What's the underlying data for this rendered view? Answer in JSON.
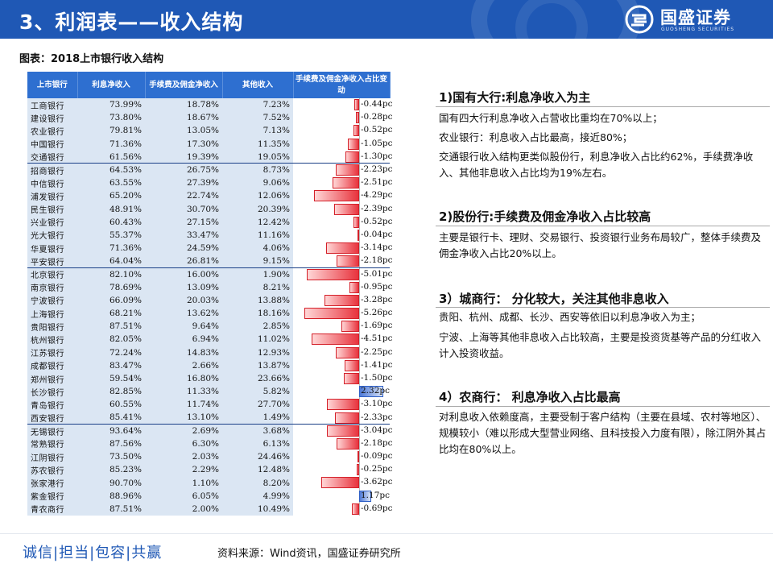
{
  "header": {
    "title": "3、利润表——收入结构"
  },
  "logo": {
    "name_cn": "国盛证券",
    "name_en": "GUOSHENG SECURITIES"
  },
  "chart_caption": "图表：2018上市银行收入结构",
  "table": {
    "columns": [
      "上市银行",
      "利息净收入",
      "手续费及佣金净收入",
      "其他收入",
      "手续费及佣金净收入占比变动"
    ],
    "groups": [
      {
        "name": "国有大行",
        "rows": [
          {
            "bank": "工商银行",
            "interest": "73.99%",
            "fee": "18.78%",
            "other": "7.23%",
            "change": -0.44,
            "change_label": "-0.44pc"
          },
          {
            "bank": "建设银行",
            "interest": "73.80%",
            "fee": "18.67%",
            "other": "7.52%",
            "change": -0.28,
            "change_label": "-0.28pc"
          },
          {
            "bank": "农业银行",
            "interest": "79.81%",
            "fee": "13.05%",
            "other": "7.13%",
            "change": -0.52,
            "change_label": "-0.52pc"
          },
          {
            "bank": "中国银行",
            "interest": "71.36%",
            "fee": "17.30%",
            "other": "11.35%",
            "change": -1.05,
            "change_label": "-1.05pc"
          },
          {
            "bank": "交通银行",
            "interest": "61.56%",
            "fee": "19.39%",
            "other": "19.05%",
            "change": -1.3,
            "change_label": "-1.30pc"
          }
        ]
      },
      {
        "name": "股份行",
        "rows": [
          {
            "bank": "招商银行",
            "interest": "64.53%",
            "fee": "26.75%",
            "other": "8.73%",
            "change": -2.23,
            "change_label": "-2.23pc"
          },
          {
            "bank": "中信银行",
            "interest": "63.55%",
            "fee": "27.39%",
            "other": "9.06%",
            "change": -2.51,
            "change_label": "-2.51pc"
          },
          {
            "bank": "浦发银行",
            "interest": "65.20%",
            "fee": "22.74%",
            "other": "12.06%",
            "change": -4.29,
            "change_label": "-4.29pc"
          },
          {
            "bank": "民生银行",
            "interest": "48.91%",
            "fee": "30.70%",
            "other": "20.39%",
            "change": -2.39,
            "change_label": "-2.39pc"
          },
          {
            "bank": "兴业银行",
            "interest": "60.43%",
            "fee": "27.15%",
            "other": "12.42%",
            "change": -0.52,
            "change_label": "-0.52pc"
          },
          {
            "bank": "光大银行",
            "interest": "55.37%",
            "fee": "33.47%",
            "other": "11.16%",
            "change": -0.04,
            "change_label": "-0.04pc"
          },
          {
            "bank": "华夏银行",
            "interest": "71.36%",
            "fee": "24.59%",
            "other": "4.06%",
            "change": -3.14,
            "change_label": "-3.14pc"
          },
          {
            "bank": "平安银行",
            "interest": "64.04%",
            "fee": "26.81%",
            "other": "9.15%",
            "change": -2.18,
            "change_label": "-2.18pc"
          }
        ]
      },
      {
        "name": "城商行",
        "rows": [
          {
            "bank": "北京银行",
            "interest": "82.10%",
            "fee": "16.00%",
            "other": "1.90%",
            "change": -5.01,
            "change_label": "-5.01pc"
          },
          {
            "bank": "南京银行",
            "interest": "78.69%",
            "fee": "13.09%",
            "other": "8.21%",
            "change": -0.95,
            "change_label": "-0.95pc"
          },
          {
            "bank": "宁波银行",
            "interest": "66.09%",
            "fee": "20.03%",
            "other": "13.88%",
            "change": -3.28,
            "change_label": "-3.28pc"
          },
          {
            "bank": "上海银行",
            "interest": "68.21%",
            "fee": "13.62%",
            "other": "18.16%",
            "change": -5.26,
            "change_label": "-5.26pc"
          },
          {
            "bank": "贵阳银行",
            "interest": "87.51%",
            "fee": "9.64%",
            "other": "2.85%",
            "change": -1.69,
            "change_label": "-1.69pc"
          },
          {
            "bank": "杭州银行",
            "interest": "82.05%",
            "fee": "6.94%",
            "other": "11.02%",
            "change": -4.51,
            "change_label": "-4.51pc"
          },
          {
            "bank": "江苏银行",
            "interest": "72.24%",
            "fee": "14.83%",
            "other": "12.93%",
            "change": -2.25,
            "change_label": "-2.25pc"
          },
          {
            "bank": "成都银行",
            "interest": "83.47%",
            "fee": "2.66%",
            "other": "13.87%",
            "change": -1.41,
            "change_label": "-1.41pc"
          },
          {
            "bank": "郑州银行",
            "interest": "59.54%",
            "fee": "16.80%",
            "other": "23.66%",
            "change": -1.5,
            "change_label": "-1.50pc"
          },
          {
            "bank": "长沙银行",
            "interest": "82.85%",
            "fee": "11.33%",
            "other": "5.82%",
            "change": 2.32,
            "change_label": "2.32pc"
          },
          {
            "bank": "青岛银行",
            "interest": "60.55%",
            "fee": "11.74%",
            "other": "27.70%",
            "change": -3.1,
            "change_label": "-3.10pc"
          },
          {
            "bank": "西安银行",
            "interest": "85.41%",
            "fee": "13.10%",
            "other": "1.49%",
            "change": -2.33,
            "change_label": "-2.33pc"
          }
        ]
      },
      {
        "name": "农商行",
        "rows": [
          {
            "bank": "无锡银行",
            "interest": "93.64%",
            "fee": "2.69%",
            "other": "3.68%",
            "change": -3.04,
            "change_label": "-3.04pc"
          },
          {
            "bank": "常熟银行",
            "interest": "87.56%",
            "fee": "6.30%",
            "other": "6.13%",
            "change": -2.18,
            "change_label": "-2.18pc"
          },
          {
            "bank": "江阴银行",
            "interest": "73.50%",
            "fee": "2.03%",
            "other": "24.46%",
            "change": -0.09,
            "change_label": "-0.09pc"
          },
          {
            "bank": "苏农银行",
            "interest": "85.23%",
            "fee": "2.29%",
            "other": "12.48%",
            "change": -0.25,
            "change_label": "-0.25pc"
          },
          {
            "bank": "张家港行",
            "interest": "90.70%",
            "fee": "1.10%",
            "other": "8.20%",
            "change": -3.62,
            "change_label": "-3.62pc"
          },
          {
            "bank": "紫金银行",
            "interest": "88.96%",
            "fee": "6.05%",
            "other": "4.99%",
            "change": 1.17,
            "change_label": "1.17pc"
          },
          {
            "bank": "青农商行",
            "interest": "87.51%",
            "fee": "2.00%",
            "other": "10.49%",
            "change": -0.69,
            "change_label": "-0.69pc"
          }
        ]
      }
    ]
  },
  "sections": [
    {
      "title": "1)国有大行:利息净收入为主",
      "paragraphs": [
        "国有四大行利息净收入占营收比重均在70%以上；",
        "农业银行：利息收入占比最高，接近80%；",
        "交通银行收入结构更类似股份行，利息净收入占比约62%，手续费净收入、其他非息收入占比均为19%左右。"
      ]
    },
    {
      "title": "2)股份行:手续费及佣金净收入占比较高",
      "paragraphs": [
        "主要是银行卡、理财、交易银行、投资银行业务布局较广，整体手续费及佣金净收入占比20%以上。"
      ]
    },
    {
      "title": "3）城商行： 分化较大，关注其他非息收入",
      "paragraphs": [
        "贵阳、杭州、成都、长沙、西安等依旧以利息净收入为主；",
        "宁波、上海等其他非息收入占比较高，主要是投资货基等产品的分红收入计入投资收益。"
      ]
    },
    {
      "title": "4）农商行： 利息净收入占比最高",
      "paragraphs": [
        "对利息收入依赖度高，主要受制于客户结构（主要在县域、农村等地区）、规模较小（难以形成大型营业网络、且科技投入力度有限），除江阴外其占比均在80%以上。"
      ]
    }
  ],
  "footer": {
    "slogan": "诚信|担当|包容|共赢",
    "source": "资料来源：Wind资讯，国盛证券研究所"
  }
}
